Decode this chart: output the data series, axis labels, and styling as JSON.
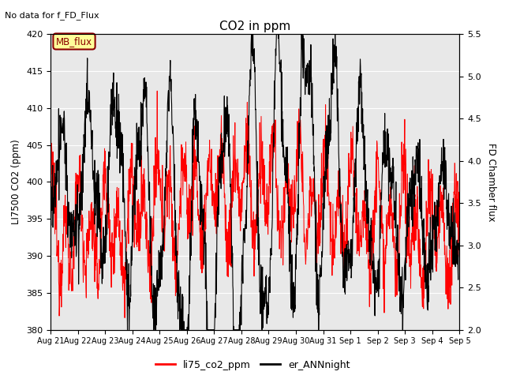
{
  "title": "CO2 in ppm",
  "top_left_text": "No data for f_FD_Flux",
  "ylabel_left": "LI7500 CO2 (ppm)",
  "ylabel_right": "FD Chamber flux",
  "ylim_left": [
    380,
    420
  ],
  "ylim_right": [
    2.0,
    5.5
  ],
  "yticks_left": [
    380,
    385,
    390,
    395,
    400,
    405,
    410,
    415,
    420
  ],
  "yticks_right": [
    2.0,
    2.5,
    3.0,
    3.5,
    4.0,
    4.5,
    5.0,
    5.5
  ],
  "xtick_labels": [
    "Aug 21",
    "Aug 22",
    "Aug 23",
    "Aug 24",
    "Aug 25",
    "Aug 26",
    "Aug 27",
    "Aug 28",
    "Aug 29",
    "Aug 30",
    "Aug 31",
    "Sep 1",
    "Sep 2",
    "Sep 3",
    "Sep 4",
    "Sep 5"
  ],
  "legend_labels": [
    "li75_co2_ppm",
    "er_ANNnight"
  ],
  "legend_colors": [
    "red",
    "black"
  ],
  "line1_color": "red",
  "line2_color": "black",
  "mb_flux_box_color": "#FFFF99",
  "mb_flux_text_color": "#8B0000",
  "mb_flux_border_color": "#8B0000",
  "background_gray": "#E8E8E8",
  "n_points": 1500,
  "figsize": [
    6.4,
    4.8
  ],
  "dpi": 100
}
